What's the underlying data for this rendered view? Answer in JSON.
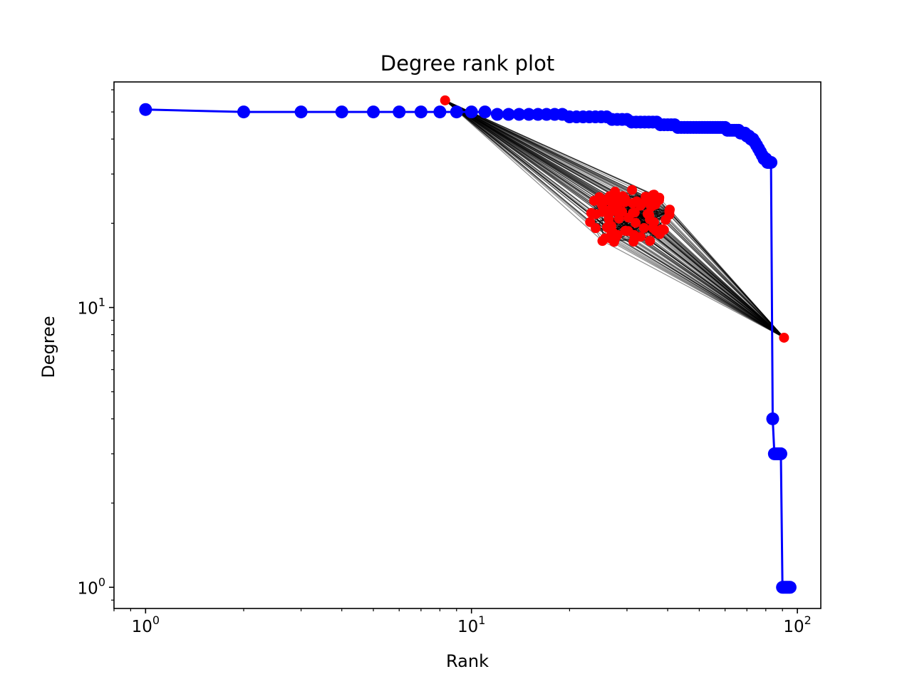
{
  "chart_data": {
    "type": "line",
    "title": "Degree rank plot",
    "xlabel": "Rank",
    "ylabel": "Degree",
    "xscale": "log",
    "yscale": "log",
    "xlim": [
      0.8,
      118
    ],
    "ylim": [
      0.84,
      64
    ],
    "grid": false,
    "x_ticks": [
      {
        "base": "10",
        "exp": "0",
        "value": 1
      },
      {
        "base": "10",
        "exp": "1",
        "value": 10
      },
      {
        "base": "10",
        "exp": "2",
        "value": 100
      }
    ],
    "y_ticks": [
      {
        "base": "10",
        "exp": "0",
        "value": 1
      },
      {
        "base": "10",
        "exp": "1",
        "value": 10
      }
    ],
    "series": [
      {
        "color": "#0000ff",
        "marker": "circle",
        "x": [
          1,
          2,
          3,
          4,
          5,
          6,
          7,
          8,
          9,
          10,
          11,
          12,
          13,
          14,
          15,
          16,
          17,
          18,
          19,
          20,
          21,
          22,
          23,
          24,
          25,
          26,
          27,
          28,
          29,
          30,
          31,
          32,
          33,
          34,
          35,
          36,
          37,
          38,
          39,
          40,
          41,
          42,
          43,
          44,
          45,
          46,
          47,
          48,
          49,
          50,
          51,
          52,
          53,
          54,
          55,
          56,
          57,
          58,
          59,
          60,
          61,
          62,
          63,
          64,
          65,
          66,
          67,
          68,
          69,
          70,
          71,
          72,
          73,
          74,
          75,
          76,
          77,
          78,
          79,
          80,
          81,
          82,
          83,
          84,
          85,
          86,
          87,
          88,
          89,
          90,
          91,
          92,
          93,
          94,
          95
        ],
        "y": [
          51,
          50,
          50,
          50,
          50,
          50,
          50,
          50,
          50,
          50,
          50,
          49,
          49,
          49,
          49,
          49,
          49,
          49,
          49,
          48,
          48,
          48,
          48,
          48,
          48,
          48,
          47,
          47,
          47,
          47,
          46,
          46,
          46,
          46,
          46,
          46,
          46,
          45,
          45,
          45,
          45,
          45,
          44,
          44,
          44,
          44,
          44,
          44,
          44,
          44,
          44,
          44,
          44,
          44,
          44,
          44,
          44,
          44,
          44,
          44,
          43,
          43,
          43,
          43,
          43,
          43,
          42,
          42,
          42,
          41,
          41,
          40,
          40,
          39,
          38,
          37,
          36,
          35,
          34,
          34,
          33,
          33,
          33,
          4,
          3,
          3,
          3,
          3,
          3,
          1,
          1,
          1,
          1,
          1,
          1
        ]
      }
    ],
    "inset_graph": {
      "node_color": "#ff0000",
      "edge_color": "#000000",
      "hub_a": [
        8.3,
        55
      ],
      "hub_b": [
        91,
        7.8
      ],
      "cluster_center": [
        30,
        21
      ],
      "cluster_nodes": 80
    }
  }
}
